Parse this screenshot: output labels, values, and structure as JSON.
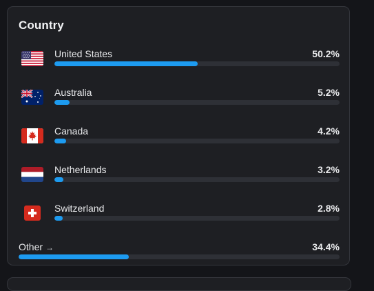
{
  "card": {
    "title": "Country",
    "rows": [
      {
        "name": "United States",
        "percent": "50.2%",
        "share": 0.502,
        "flag": "us-flag-icon"
      },
      {
        "name": "Australia",
        "percent": "5.2%",
        "share": 0.052,
        "flag": "australia-flag-icon"
      },
      {
        "name": "Canada",
        "percent": "4.2%",
        "share": 0.042,
        "flag": "canada-flag-icon"
      },
      {
        "name": "Netherlands",
        "percent": "3.2%",
        "share": 0.032,
        "flag": "netherlands-flag-icon"
      },
      {
        "name": "Switzerland",
        "percent": "2.8%",
        "share": 0.028,
        "flag": "switzerland-flag-icon"
      }
    ],
    "other": {
      "label": "Other",
      "arrow": "→",
      "percent": "34.4%",
      "share": 0.344,
      "icon": "arrow-right-icon"
    }
  },
  "colors": {
    "accent": "#1d9bf0",
    "track": "#2e3036",
    "card_background": "#1e1f23",
    "page_background": "#141519"
  }
}
